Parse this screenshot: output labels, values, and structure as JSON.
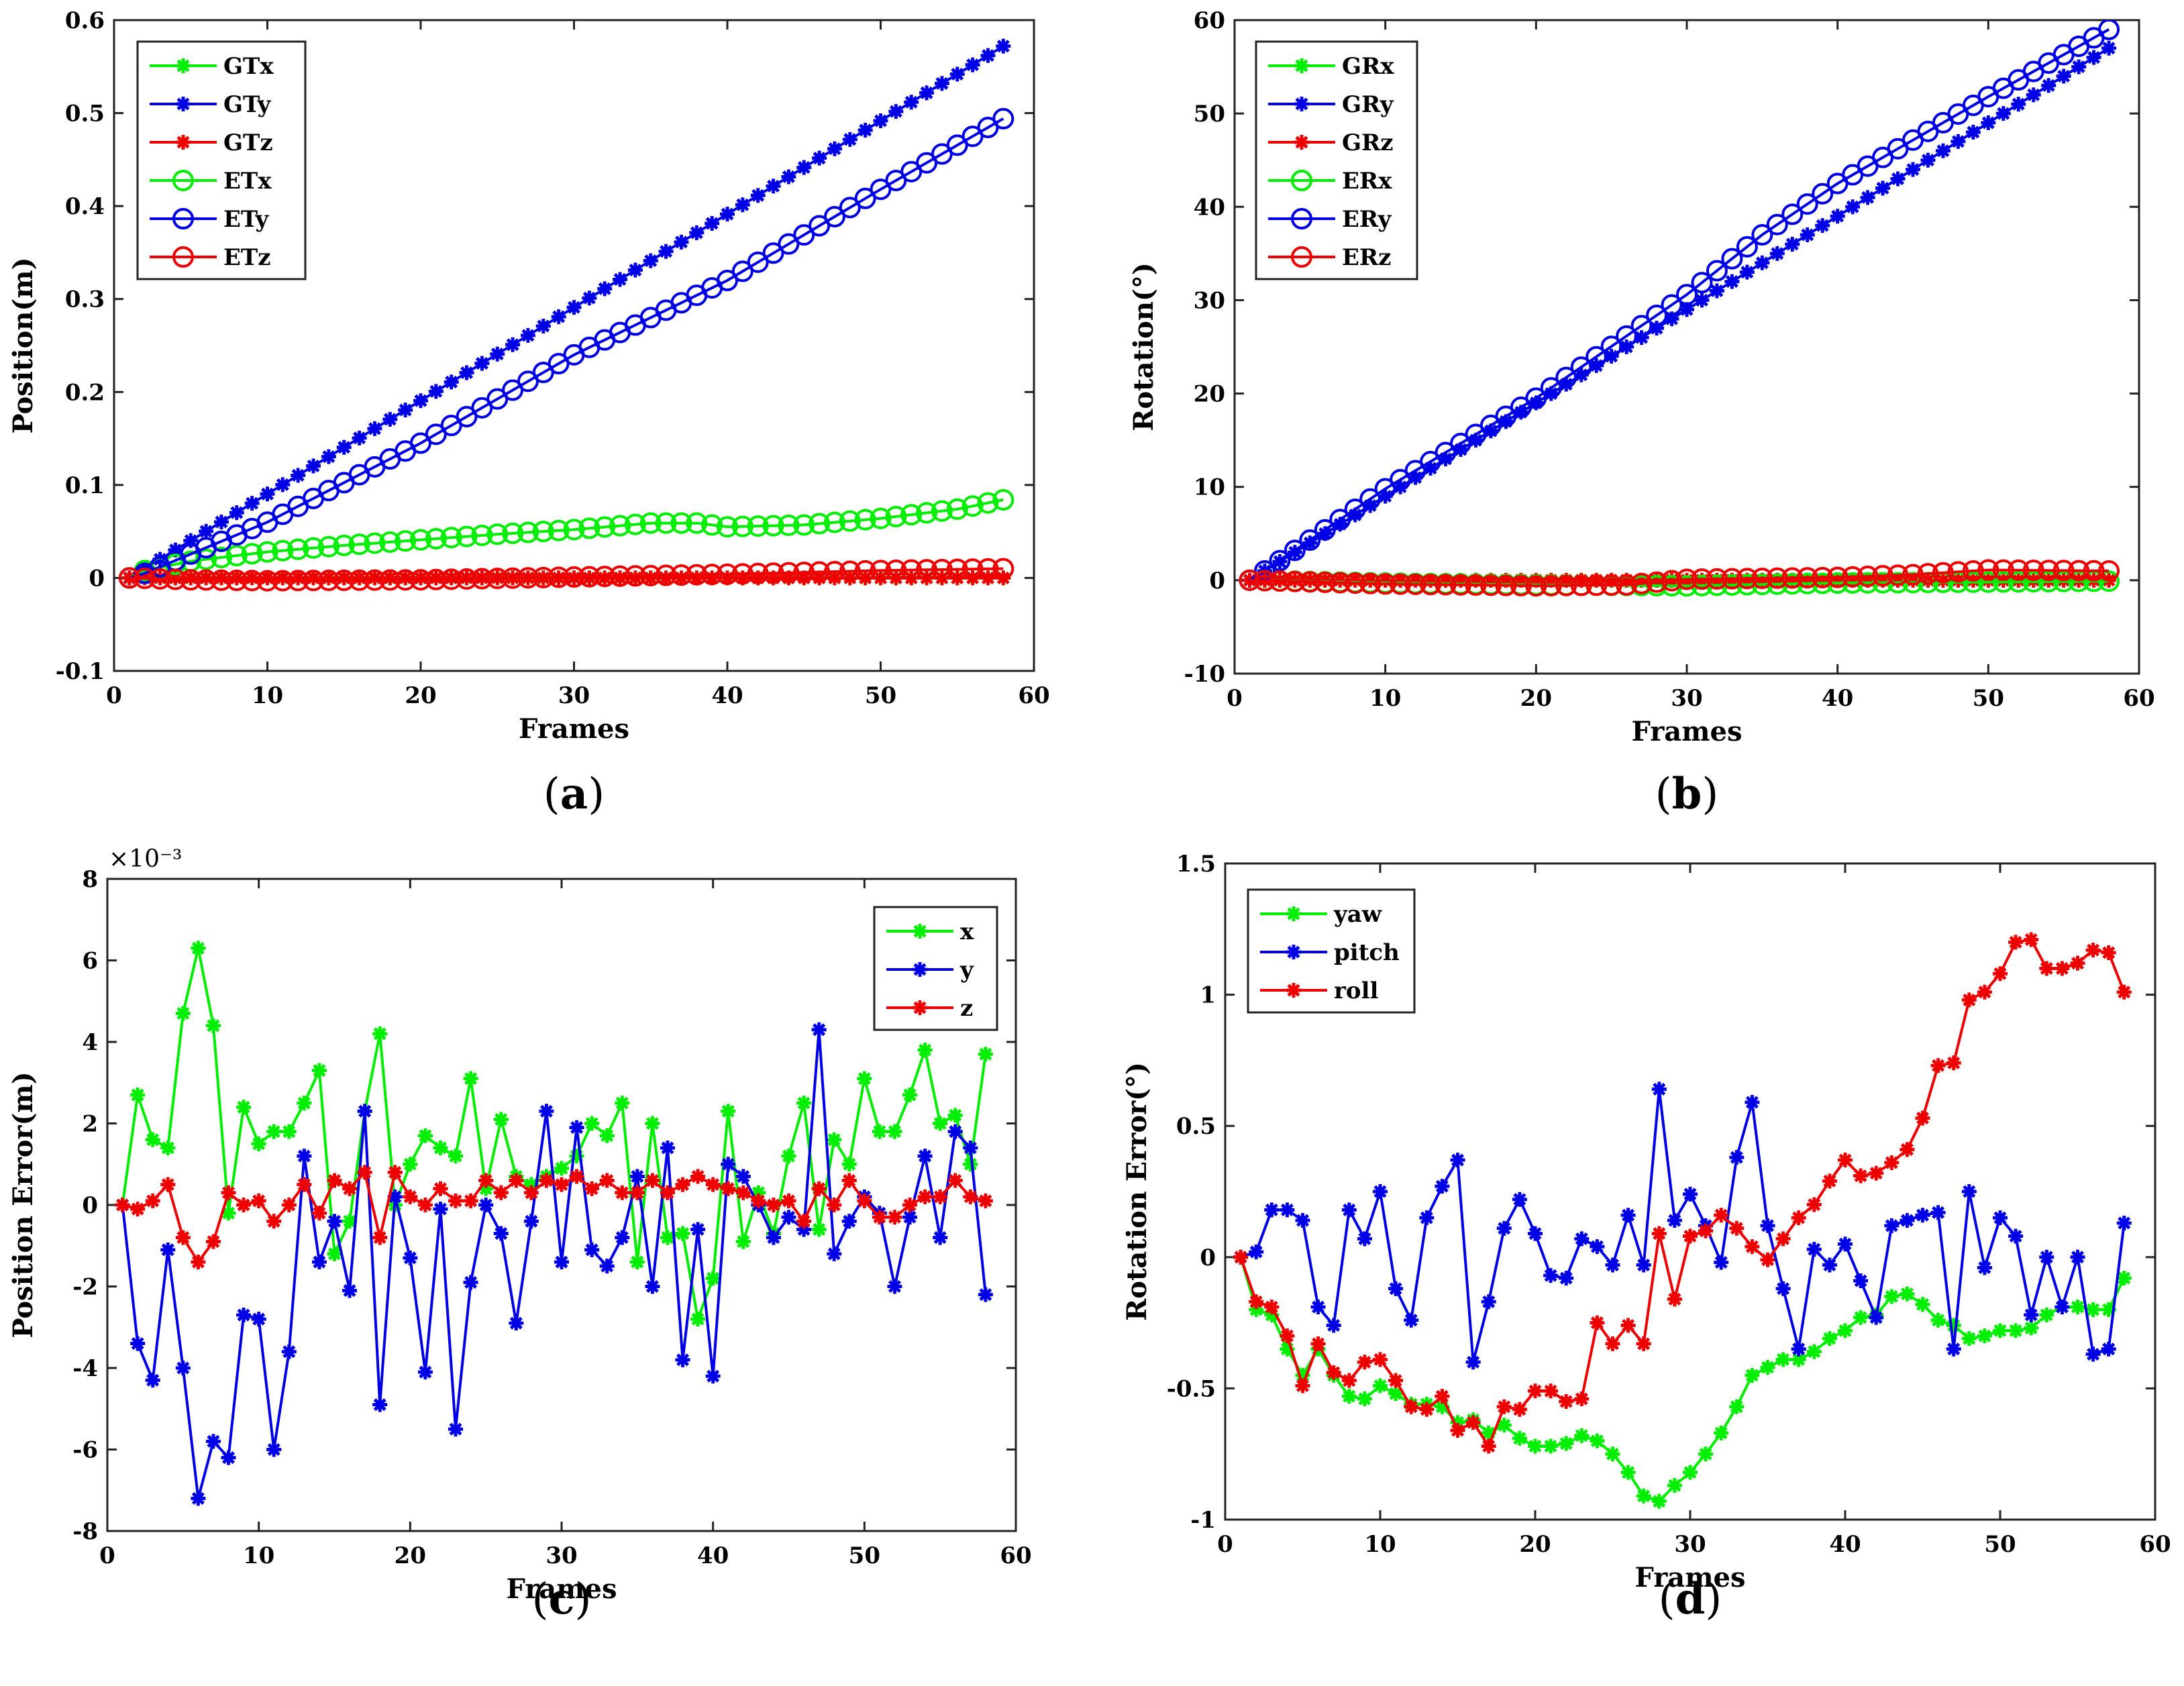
{
  "colors": {
    "green": "#00ee00",
    "blue": "#0000e6",
    "red": "#ee0000"
  },
  "chart_data": [
    {
      "type": "line",
      "caption": "a",
      "xlabel": "Frames",
      "ylabel": "Position(m)",
      "xlim": [
        0,
        60
      ],
      "ylim": [
        -0.1,
        0.6
      ],
      "xticks": [
        0,
        10,
        20,
        30,
        40,
        50,
        60
      ],
      "yticks": [
        -0.1,
        0,
        0.1,
        0.2,
        0.3,
        0.4,
        0.5,
        0.6
      ],
      "xtick_labels": [
        "0",
        "10",
        "20",
        "30",
        "40",
        "50",
        "60"
      ],
      "ytick_labels": [
        "-0.1",
        "0",
        "0.1",
        "0.2",
        "0.3",
        "0.4",
        "0.5",
        "0.6"
      ],
      "x_start": 1,
      "x_end": 58,
      "legend_position": "top-left",
      "series": [
        {
          "name": "GTx",
          "color": "green",
          "marker": "star",
          "points": [
            [
              1,
              0
            ],
            [
              58,
              0
            ]
          ]
        },
        {
          "name": "GTy",
          "color": "blue",
          "marker": "star",
          "points": [
            [
              1,
              0
            ],
            [
              58,
              0.572
            ]
          ]
        },
        {
          "name": "GTz",
          "color": "red",
          "marker": "star",
          "points": [
            [
              1,
              0
            ],
            [
              58,
              0
            ]
          ]
        },
        {
          "name": "ETx",
          "color": "green",
          "marker": "circle",
          "points": [
            [
              1,
              0
            ],
            [
              2,
              0.008
            ],
            [
              5,
              0.018
            ],
            [
              10,
              0.028
            ],
            [
              15,
              0.035
            ],
            [
              20,
              0.041
            ],
            [
              25,
              0.047
            ],
            [
              30,
              0.052
            ],
            [
              35,
              0.059
            ],
            [
              38,
              0.059
            ],
            [
              40,
              0.055
            ],
            [
              45,
              0.057
            ],
            [
              50,
              0.064
            ],
            [
              55,
              0.074
            ],
            [
              58,
              0.084
            ]
          ]
        },
        {
          "name": "ETy",
          "color": "blue",
          "marker": "circle",
          "points": [
            [
              1,
              0
            ],
            [
              2,
              0.005
            ],
            [
              10,
              0.06
            ],
            [
              20,
              0.145
            ],
            [
              30,
              0.24
            ],
            [
              40,
              0.32
            ],
            [
              50,
              0.418
            ],
            [
              58,
              0.494
            ]
          ]
        },
        {
          "name": "ETz",
          "color": "red",
          "marker": "circle",
          "points": [
            [
              1,
              0
            ],
            [
              5,
              -0.002
            ],
            [
              10,
              -0.003
            ],
            [
              20,
              -0.002
            ],
            [
              30,
              0.001
            ],
            [
              40,
              0.004
            ],
            [
              50,
              0.008
            ],
            [
              58,
              0.01
            ]
          ]
        }
      ]
    },
    {
      "type": "line",
      "caption": "b",
      "xlabel": "Frames",
      "ylabel": "Rotation(°)",
      "xlim": [
        0,
        60
      ],
      "ylim": [
        -10,
        60
      ],
      "xticks": [
        0,
        10,
        20,
        30,
        40,
        50,
        60
      ],
      "yticks": [
        -10,
        0,
        10,
        20,
        30,
        40,
        50,
        60
      ],
      "xtick_labels": [
        "0",
        "10",
        "20",
        "30",
        "40",
        "50",
        "60"
      ],
      "ytick_labels": [
        "-10",
        "0",
        "10",
        "20",
        "30",
        "40",
        "50",
        "60"
      ],
      "x_start": 1,
      "x_end": 58,
      "legend_position": "top-left",
      "series": [
        {
          "name": "GRx",
          "color": "green",
          "marker": "star",
          "points": [
            [
              1,
              0
            ],
            [
              58,
              0
            ]
          ]
        },
        {
          "name": "GRy",
          "color": "blue",
          "marker": "star",
          "points": [
            [
              1,
              0
            ],
            [
              2,
              1
            ],
            [
              58,
              57
            ]
          ]
        },
        {
          "name": "GRz",
          "color": "red",
          "marker": "star",
          "points": [
            [
              1,
              0
            ],
            [
              58,
              0
            ]
          ]
        },
        {
          "name": "ERx",
          "color": "green",
          "marker": "circle",
          "points": [
            [
              1,
              0
            ],
            [
              10,
              -0.3
            ],
            [
              20,
              -0.5
            ],
            [
              30,
              -0.6
            ],
            [
              40,
              -0.3
            ],
            [
              50,
              -0.2
            ],
            [
              58,
              -0.1
            ]
          ]
        },
        {
          "name": "ERy",
          "color": "blue",
          "marker": "circle",
          "points": [
            [
              1,
              0
            ],
            [
              2,
              1
            ],
            [
              10,
              9.8
            ],
            [
              20,
              19.5
            ],
            [
              30,
              30.6
            ],
            [
              35,
              37
            ],
            [
              40,
              42.5
            ],
            [
              50,
              51.8
            ],
            [
              58,
              59
            ]
          ]
        },
        {
          "name": "ERz",
          "color": "red",
          "marker": "circle",
          "points": [
            [
              1,
              0
            ],
            [
              10,
              -0.4
            ],
            [
              20,
              -0.6
            ],
            [
              26,
              -0.5
            ],
            [
              30,
              0.1
            ],
            [
              40,
              0.3
            ],
            [
              45,
              0.6
            ],
            [
              50,
              1.1
            ],
            [
              58,
              1.0
            ]
          ]
        }
      ]
    },
    {
      "type": "line",
      "caption": "c",
      "xlabel": "Frames",
      "ylabel": "Position Error(m)",
      "multiplier": "×10⁻³",
      "xlim": [
        0,
        60
      ],
      "ylim": [
        -8,
        8
      ],
      "xticks": [
        0,
        10,
        20,
        30,
        40,
        50,
        60
      ],
      "yticks": [
        -8,
        -6,
        -4,
        -2,
        0,
        2,
        4,
        6,
        8
      ],
      "xtick_labels": [
        "0",
        "10",
        "20",
        "30",
        "40",
        "50",
        "60"
      ],
      "ytick_labels": [
        "-8",
        "-6",
        "-4",
        "-2",
        "0",
        "2",
        "4",
        "6",
        "8"
      ],
      "x_start": 1,
      "legend_position": "top-right",
      "series": [
        {
          "name": "x",
          "color": "green",
          "marker": "star",
          "values": [
            0,
            2.7,
            1.6,
            1.4,
            4.7,
            6.3,
            4.4,
            -0.2,
            2.4,
            1.5,
            1.8,
            1.8,
            2.5,
            3.3,
            -1.2,
            -0.4,
            2.3,
            4.2,
            0.0,
            1.0,
            1.7,
            1.4,
            1.2,
            3.1,
            0.4,
            2.1,
            0.7,
            0.5,
            0.7,
            0.9,
            1.2,
            2.0,
            1.7,
            2.5,
            -1.4,
            2.0,
            -0.8,
            -0.7,
            -2.8,
            -1.8,
            2.3,
            -0.9,
            0.3,
            -0.7,
            1.2,
            2.5,
            -0.6,
            1.6,
            1.0,
            3.1,
            1.8,
            1.8,
            2.7,
            3.8,
            2.0,
            2.2,
            1.0,
            3.7
          ]
        },
        {
          "name": "y",
          "color": "blue",
          "marker": "star",
          "values": [
            0,
            -3.4,
            -4.3,
            -1.1,
            -4.0,
            -7.2,
            -5.8,
            -6.2,
            -2.7,
            -2.8,
            -6.0,
            -3.6,
            1.2,
            -1.4,
            -0.4,
            -2.1,
            2.3,
            -4.9,
            0.2,
            -1.3,
            -4.1,
            -0.1,
            -5.5,
            -1.9,
            0.0,
            -0.7,
            -2.9,
            -0.4,
            2.3,
            -1.4,
            1.9,
            -1.1,
            -1.5,
            -0.8,
            0.7,
            -2.0,
            1.4,
            -3.8,
            -0.6,
            -4.2,
            1.0,
            0.7,
            0.0,
            -0.8,
            -0.3,
            -0.6,
            4.3,
            -1.2,
            -0.4,
            0.2,
            -0.2,
            -2.0,
            -0.3,
            1.2,
            -0.8,
            1.8,
            1.4,
            -2.2
          ]
        },
        {
          "name": "z",
          "color": "red",
          "marker": "star",
          "values": [
            0,
            -0.1,
            0.1,
            0.5,
            -0.8,
            -1.4,
            -0.9,
            0.3,
            0.0,
            0.1,
            -0.4,
            0.0,
            0.5,
            -0.2,
            0.6,
            0.4,
            0.8,
            -0.8,
            0.8,
            0.2,
            0.0,
            0.4,
            0.1,
            0.1,
            0.6,
            0.3,
            0.6,
            0.3,
            0.6,
            0.5,
            0.7,
            0.4,
            0.6,
            0.3,
            0.3,
            0.6,
            0.3,
            0.5,
            0.7,
            0.5,
            0.4,
            0.3,
            0.1,
            0.0,
            0.1,
            -0.4,
            0.4,
            0.0,
            0.6,
            0.1,
            -0.3,
            -0.3,
            0.0,
            0.2,
            0.2,
            0.6,
            0.2,
            0.1
          ]
        }
      ]
    },
    {
      "type": "line",
      "caption": "d",
      "xlabel": "Frames",
      "ylabel": "Rotation Error(°)",
      "xlim": [
        0,
        60
      ],
      "ylim": [
        -1,
        1.5
      ],
      "xticks": [
        0,
        10,
        20,
        30,
        40,
        50,
        60
      ],
      "yticks": [
        -1,
        -0.5,
        0,
        0.5,
        1,
        1.5
      ],
      "xtick_labels": [
        "0",
        "10",
        "20",
        "30",
        "40",
        "50",
        "60"
      ],
      "ytick_labels": [
        "-1",
        "-0.5",
        "0",
        "0.5",
        "1",
        "1.5"
      ],
      "x_start": 1,
      "legend_position": "top-left",
      "series": [
        {
          "name": "yaw",
          "color": "green",
          "marker": "star",
          "values": [
            0,
            -0.2,
            -0.22,
            -0.35,
            -0.45,
            -0.35,
            -0.45,
            -0.53,
            -0.54,
            -0.49,
            -0.52,
            -0.56,
            -0.56,
            -0.57,
            -0.63,
            -0.62,
            -0.67,
            -0.64,
            -0.69,
            -0.72,
            -0.72,
            -0.71,
            -0.68,
            -0.7,
            -0.75,
            -0.82,
            -0.91,
            -0.93,
            -0.87,
            -0.82,
            -0.75,
            -0.67,
            -0.57,
            -0.45,
            -0.42,
            -0.39,
            -0.39,
            -0.36,
            -0.31,
            -0.28,
            -0.23,
            -0.22,
            -0.15,
            -0.14,
            -0.18,
            -0.24,
            -0.26,
            -0.31,
            -0.3,
            -0.28,
            -0.28,
            -0.27,
            -0.22,
            -0.19,
            -0.19,
            -0.2,
            -0.2,
            -0.08
          ]
        },
        {
          "name": "pitch",
          "color": "blue",
          "marker": "star",
          "values": [
            0,
            0.02,
            0.18,
            0.18,
            0.14,
            -0.19,
            -0.26,
            0.18,
            0.07,
            0.25,
            -0.12,
            -0.24,
            0.15,
            0.27,
            0.37,
            -0.4,
            -0.17,
            0.11,
            0.22,
            0.09,
            -0.07,
            -0.08,
            0.07,
            0.04,
            -0.03,
            0.16,
            -0.03,
            0.64,
            0.14,
            0.24,
            0.12,
            -0.02,
            0.38,
            0.59,
            0.12,
            -0.12,
            -0.35,
            0.03,
            -0.03,
            0.05,
            -0.09,
            -0.23,
            0.12,
            0.14,
            0.16,
            0.17,
            -0.35,
            0.25,
            -0.04,
            0.15,
            0.08,
            -0.22,
            0.0,
            -0.19,
            0.0,
            -0.37,
            -0.35,
            0.13
          ]
        },
        {
          "name": "roll",
          "color": "red",
          "marker": "star",
          "values": [
            0,
            -0.17,
            -0.19,
            -0.3,
            -0.49,
            -0.33,
            -0.44,
            -0.47,
            -0.4,
            -0.39,
            -0.47,
            -0.57,
            -0.58,
            -0.53,
            -0.66,
            -0.63,
            -0.72,
            -0.57,
            -0.58,
            -0.51,
            -0.51,
            -0.55,
            -0.54,
            -0.25,
            -0.33,
            -0.26,
            -0.33,
            0.09,
            -0.16,
            0.08,
            0.1,
            0.16,
            0.11,
            0.04,
            -0.01,
            0.07,
            0.15,
            0.2,
            0.29,
            0.37,
            0.31,
            0.32,
            0.36,
            0.41,
            0.53,
            0.73,
            0.74,
            0.98,
            1.01,
            1.08,
            1.2,
            1.21,
            1.1,
            1.1,
            1.12,
            1.17,
            1.16,
            1.01
          ]
        }
      ]
    }
  ]
}
